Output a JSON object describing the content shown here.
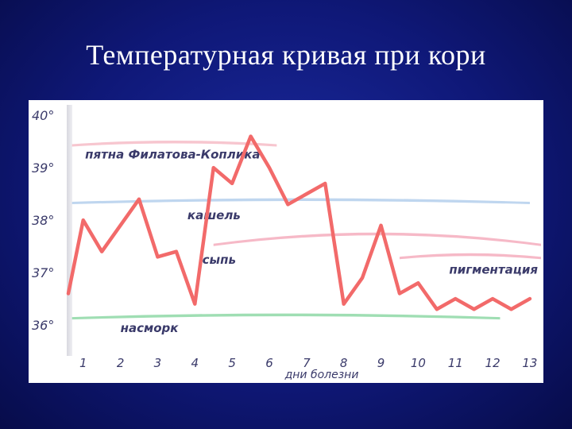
{
  "slide": {
    "title": "Температурная кривая при кори"
  },
  "chart_data": {
    "type": "line",
    "title": "",
    "xlabel": "дни болезни",
    "ylabel": "",
    "y_tick_labels": [
      "40°",
      "39°",
      "38°",
      "37°",
      "36°"
    ],
    "y_ticks": [
      40,
      39,
      38,
      37,
      36
    ],
    "x_tick_labels": [
      "1",
      "2",
      "3",
      "4",
      "5",
      "6",
      "7",
      "8",
      "9",
      "10",
      "11",
      "12",
      "13"
    ],
    "ylim": [
      35.5,
      40.2
    ],
    "xlim": [
      0.6,
      13.3
    ],
    "series": [
      {
        "color": "#f26a6a",
        "x": [
          0.6,
          1.0,
          1.5,
          2.0,
          2.5,
          3.0,
          3.5,
          4.0,
          4.5,
          5.0,
          5.5,
          6.0,
          6.5,
          7.0,
          7.5,
          8.0,
          8.5,
          9.0,
          9.5,
          10.0,
          10.5,
          11.0,
          11.5,
          12.0,
          12.5,
          13.0
        ],
        "y": [
          36.6,
          38.0,
          37.4,
          37.9,
          38.4,
          37.3,
          37.4,
          36.4,
          39.0,
          38.7,
          39.6,
          39.0,
          38.3,
          38.5,
          38.7,
          36.4,
          36.9,
          37.9,
          36.6,
          36.8,
          36.3,
          36.5,
          36.3,
          36.5,
          36.3,
          36.5
        ]
      }
    ],
    "bands": [
      {
        "label": "пятна Филатова-Коплика",
        "x_start": 0.7,
        "x_end": 6.2,
        "y": 39.45,
        "color": "#f4b3bf",
        "label_color": "#3a3a6a"
      },
      {
        "label": "кашель",
        "x_start": 0.7,
        "x_end": 13.0,
        "y": 38.35,
        "color": "#a9c8ea",
        "label_color": "#3a3a6a"
      },
      {
        "label": "сыпь",
        "x_start": 4.5,
        "x_end": 13.3,
        "y": 37.55,
        "color": "#f3a1b4",
        "label_color": "#3a3a6a"
      },
      {
        "label": "пигментация",
        "x_start": 9.5,
        "x_end": 13.3,
        "y": 37.3,
        "color": "#f3a1b4",
        "label_color": "#3a3a6a"
      },
      {
        "label": "насморк",
        "x_start": 0.7,
        "x_end": 12.2,
        "y": 36.15,
        "color": "#7fd39a",
        "label_color": "#3a3a6a"
      }
    ],
    "grid": false,
    "legend": "none"
  }
}
